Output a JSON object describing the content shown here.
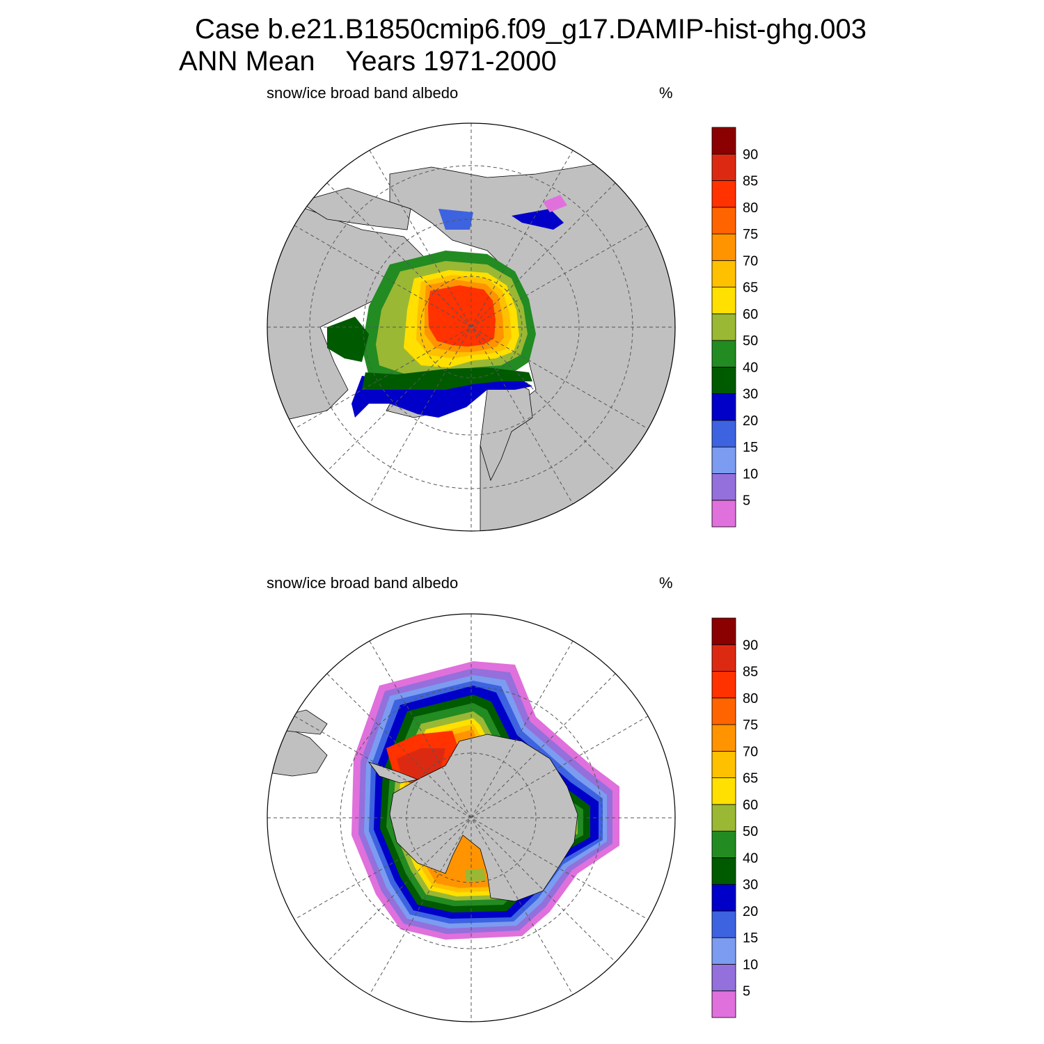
{
  "header": {
    "line1": "Case b.e21.B1850cmip6.f09_g17.DAMIP-hist-ghg.003",
    "line2_left": "ANN Mean",
    "line2_right": "Years 1971-2000"
  },
  "colors": {
    "land": "#c0c0c0",
    "ocean": "#ffffff"
  },
  "colorbar": {
    "levels": [
      "5",
      "10",
      "15",
      "20",
      "30",
      "40",
      "50",
      "60",
      "65",
      "70",
      "75",
      "80",
      "85",
      "90"
    ],
    "colors": [
      "#e070dc",
      "#9370db",
      "#7b9cf0",
      "#3d63e0",
      "#0000c8",
      "#005a00",
      "#228b22",
      "#9ab834",
      "#ffe000",
      "#ffc000",
      "#ff9400",
      "#ff6400",
      "#ff3200",
      "#dc2a12",
      "#8b0000"
    ]
  },
  "panels": [
    {
      "id": "north",
      "left_title": "snow/ice broad band albedo",
      "right_title": "%"
    },
    {
      "id": "south",
      "left_title": "snow/ice broad band albedo",
      "right_title": "%"
    }
  ]
}
